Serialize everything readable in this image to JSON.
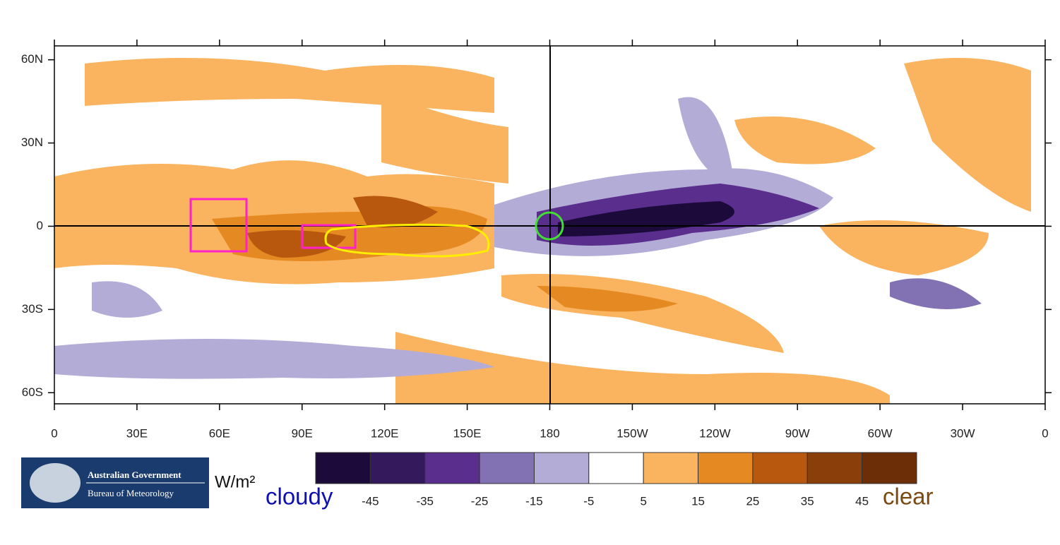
{
  "map": {
    "lon_range": [
      0,
      360
    ],
    "lat_range": [
      -64,
      65
    ],
    "lon_ticks": [
      {
        "value": 0,
        "label": "0"
      },
      {
        "value": 30,
        "label": "30E"
      },
      {
        "value": 60,
        "label": "60E"
      },
      {
        "value": 90,
        "label": "90E"
      },
      {
        "value": 120,
        "label": "120E"
      },
      {
        "value": 150,
        "label": "150E"
      },
      {
        "value": 180,
        "label": "180"
      },
      {
        "value": 210,
        "label": "150W"
      },
      {
        "value": 240,
        "label": "120W"
      },
      {
        "value": 270,
        "label": "90W"
      },
      {
        "value": 300,
        "label": "60W"
      },
      {
        "value": 330,
        "label": "30W"
      },
      {
        "value": 360,
        "label": "0"
      }
    ],
    "lat_ticks": [
      {
        "value": 60,
        "label": "60N"
      },
      {
        "value": 30,
        "label": "30N"
      },
      {
        "value": 0,
        "label": "0"
      },
      {
        "value": -30,
        "label": "30S"
      },
      {
        "value": -60,
        "label": "60S"
      }
    ]
  },
  "colorbar": {
    "unit": "W/m²",
    "low_label": "cloudy",
    "high_label": "clear",
    "levels": [
      -45,
      -35,
      -25,
      -15,
      -5,
      5,
      15,
      25,
      35,
      45
    ],
    "colors": [
      "#1c0a3a",
      "#341a5c",
      "#5a2e8c",
      "#8372b3",
      "#b3acd6",
      "#ffffff",
      "#fab35e",
      "#e58a22",
      "#b8580e",
      "#8a3f0a",
      "#6b2e07"
    ]
  },
  "logo": {
    "line1": "Australian Government",
    "line2": "Bureau of Meteorology"
  }
}
